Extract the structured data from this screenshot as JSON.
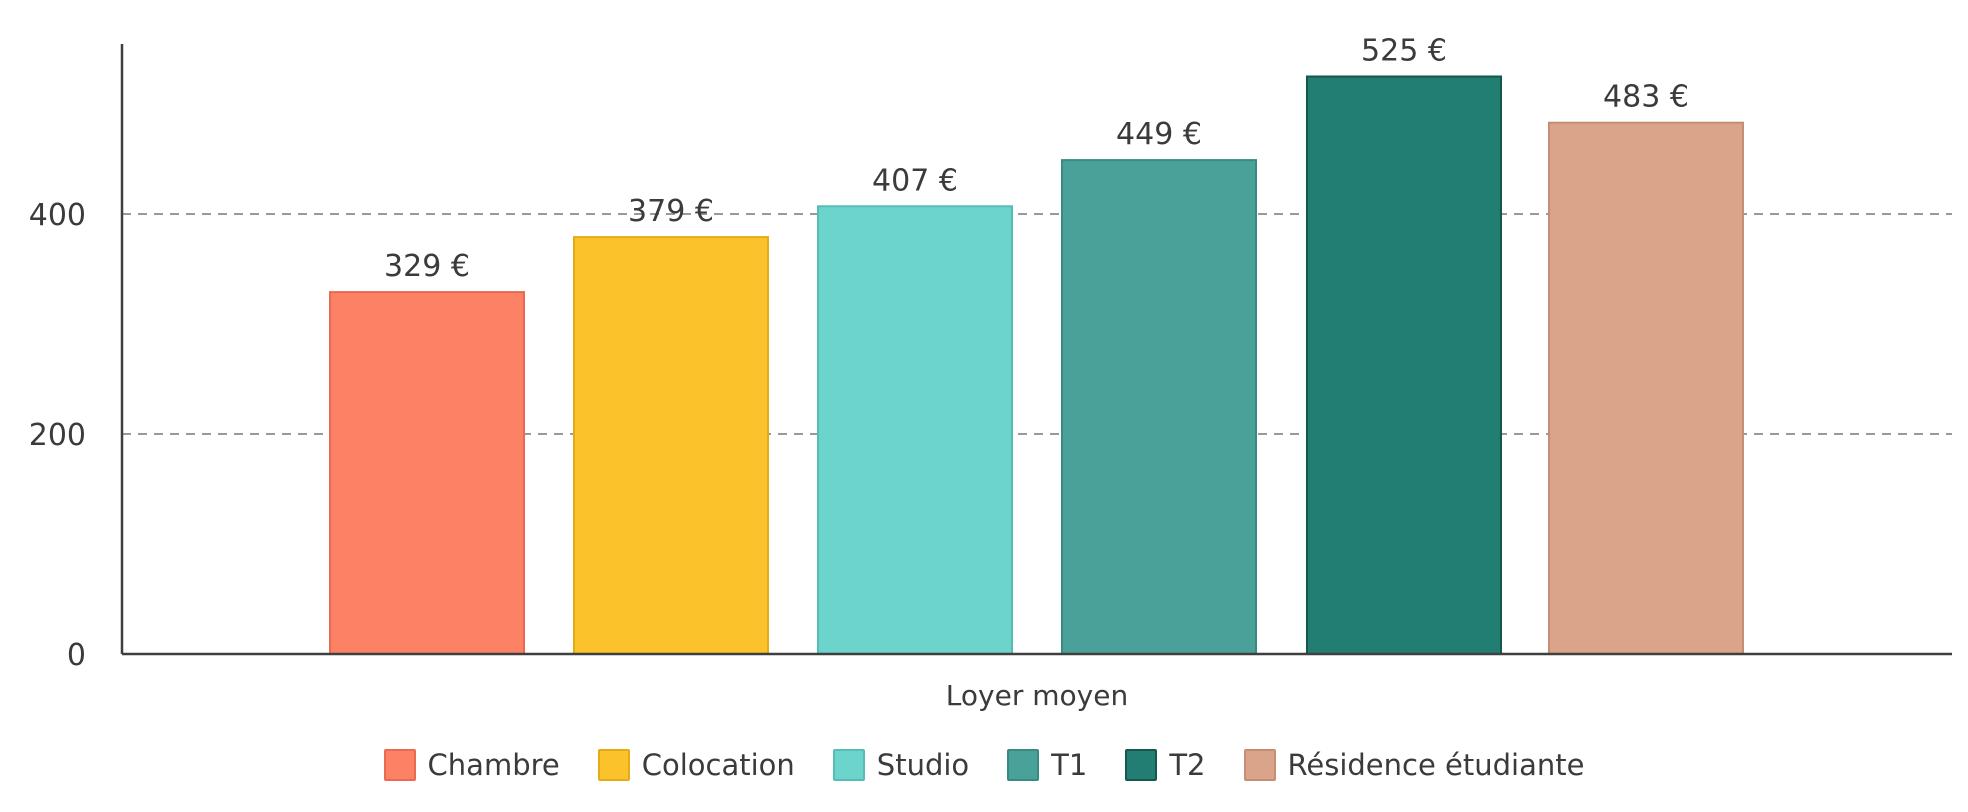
{
  "chart_data": {
    "type": "bar",
    "title": "",
    "xlabel": "Loyer moyen",
    "ylabel": "",
    "ylim": [
      0,
      550
    ],
    "yticks": [
      0,
      200,
      400
    ],
    "grid": "horizontal dashed",
    "legend_position": "bottom",
    "categories": [
      "Loyer moyen"
    ],
    "series": [
      {
        "name": "Chambre",
        "values": [
          329
        ],
        "label": "329 €",
        "color": "#fd8165",
        "border": "#e86a50"
      },
      {
        "name": "Colocation",
        "values": [
          379
        ],
        "label": "379 €",
        "color": "#fcc22b",
        "border": "#e5ab16"
      },
      {
        "name": "Studio",
        "values": [
          407
        ],
        "label": "407 €",
        "color": "#6dd4cb",
        "border": "#54bdb4"
      },
      {
        "name": "T1",
        "values": [
          449
        ],
        "label": "449 €",
        "color": "#4aa199",
        "border": "#388a83"
      },
      {
        "name": "T2",
        "values": [
          525
        ],
        "label": "525 €",
        "color": "#227d73",
        "border": "#13574f"
      },
      {
        "name": "Résidence étudiante",
        "values": [
          483
        ],
        "label": "483 €",
        "color": "#d9a489",
        "border": "#c58e72"
      }
    ]
  }
}
